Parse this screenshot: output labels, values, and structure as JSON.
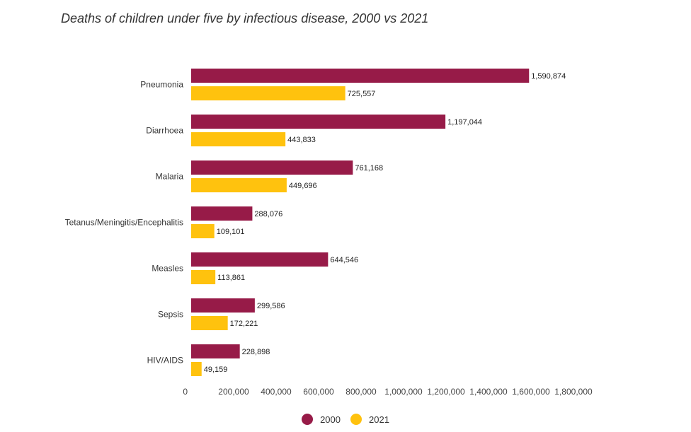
{
  "chart_data": {
    "type": "bar",
    "orientation": "horizontal",
    "title": "Deaths of children under five by infectious disease, 2000 vs 2021",
    "categories": [
      "Pneumonia",
      "Diarrhoea",
      "Malaria",
      "Tetanus/Meningitis/Encephalitis",
      "Measles",
      "Sepsis",
      "HIV/AIDS"
    ],
    "series": [
      {
        "name": "2000",
        "color": "#971b48",
        "values": [
          1590874,
          1197044,
          761168,
          288076,
          644546,
          299586,
          228898
        ]
      },
      {
        "name": "2021",
        "color": "#ffc20e",
        "values": [
          725557,
          443833,
          449696,
          109101,
          113861,
          172221,
          49159
        ]
      }
    ],
    "xlim": [
      0,
      1800000
    ],
    "xticks": [
      0,
      200000,
      400000,
      600000,
      800000,
      1000000,
      1200000,
      1400000,
      1600000,
      1800000
    ],
    "xtick_labels": [
      "0",
      "200,000",
      "400,000",
      "600,000",
      "800,000",
      "1,000,000",
      "1,200,000",
      "1,400,000",
      "1,600,000",
      "1,800,000"
    ],
    "grid": false,
    "legend_position": "bottom-center"
  }
}
